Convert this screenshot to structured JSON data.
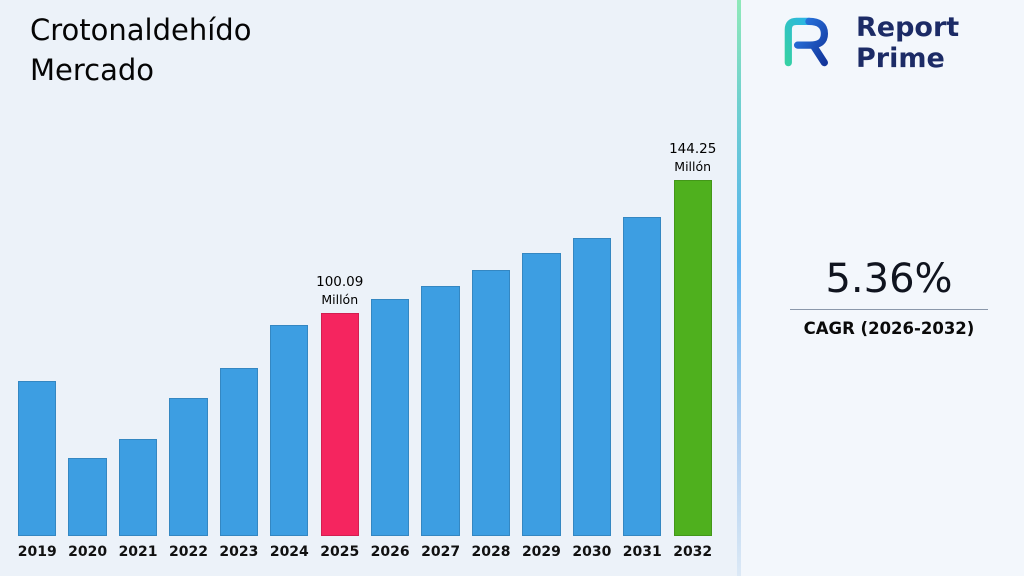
{
  "page": {
    "background": "#ecf2f9"
  },
  "header": {
    "title_line1": "Crotonaldehído",
    "title_line2": "Mercado"
  },
  "brand": {
    "name_line1": "Report",
    "name_line2": "Prime",
    "text_color": "#1c2b66"
  },
  "cagr": {
    "value": "5.36%",
    "label": "CAGR (2026-2032)"
  },
  "chart_data": {
    "type": "bar",
    "title": "Crotonaldehído Mercado",
    "unit": "Millón",
    "categories": [
      "2019",
      "2020",
      "2021",
      "2022",
      "2023",
      "2024",
      "2025",
      "2026",
      "2027",
      "2028",
      "2029",
      "2030",
      "2031",
      "2032"
    ],
    "values": [
      77.5,
      51.9,
      58.3,
      71.9,
      81.8,
      96.1,
      100.09,
      104.7,
      109.1,
      114.4,
      120.0,
      125.0,
      131.9,
      144.25
    ],
    "annotations": [
      {
        "category": "2025",
        "lines": [
          "100.09",
          "Millón"
        ]
      },
      {
        "category": "2032",
        "lines": [
          "144.25",
          "Millón"
        ]
      }
    ],
    "bar_colors": {
      "default": "#3d9ee2",
      "2025": "#f5255f",
      "2032": "#4fb01e"
    },
    "ylim": [
      26,
      144.25
    ],
    "grid": false,
    "legend": "none",
    "xlabel": "",
    "ylabel": ""
  }
}
